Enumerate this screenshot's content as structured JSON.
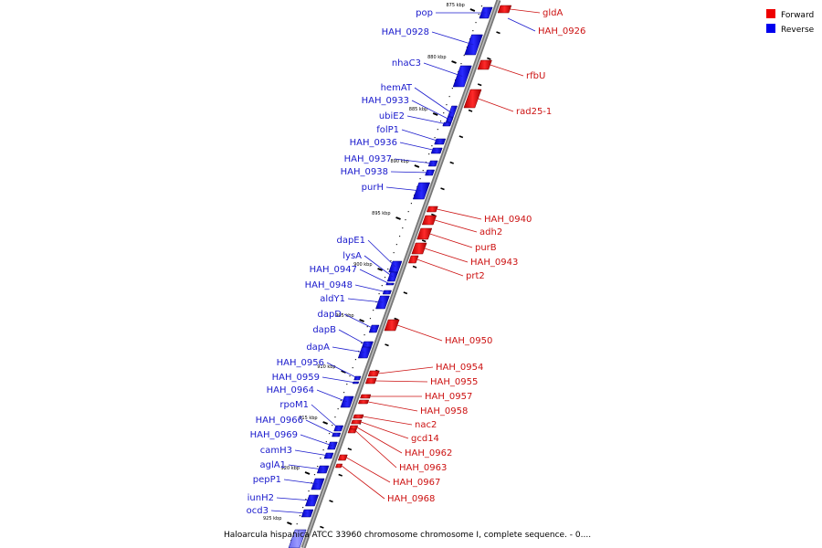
{
  "caption": "Haloarcula hispanica ATCC 33960 chromosome chromosome I, complete sequence. - 0....",
  "legend": [
    {
      "label": "Forward",
      "color": "#ee0000"
    },
    {
      "label": "Reverse",
      "color": "#0000ee"
    }
  ],
  "ticks": [
    "875 kbp",
    "880 kbp",
    "885 kbp",
    "890 kbp",
    "895 kbp",
    "900 kbp",
    "905 kbp",
    "910 kbp",
    "915 kbp",
    "920 kbp",
    "925 kbp"
  ],
  "reverse_genes": [
    "pop",
    "HAH_0928",
    "nhaC3",
    "hemAT",
    "HAH_0933",
    "ubiE2",
    "folP1",
    "HAH_0936",
    "HAH_0937",
    "HAH_0938",
    "purH",
    "dapE1",
    "lysA",
    "HAH_0947",
    "HAH_0948",
    "aldY1",
    "dapD",
    "dapB",
    "dapA",
    "HAH_0956",
    "HAH_0959",
    "HAH_0964",
    "rpoM1",
    "HAH_0966",
    "HAH_0969",
    "camH3",
    "aglA1",
    "pepP1",
    "iunH2",
    "ocd3"
  ],
  "forward_genes": [
    "gldA",
    "HAH_0926",
    "rfbU",
    "rad25-1",
    "HAH_0940",
    "adh2",
    "purB",
    "HAH_0943",
    "prt2",
    "HAH_0950",
    "HAH_0954",
    "HAH_0955",
    "HAH_0957",
    "HAH_0958",
    "nac2",
    "gcd14",
    "HAH_0962",
    "HAH_0963",
    "HAH_0967",
    "HAH_0968"
  ]
}
